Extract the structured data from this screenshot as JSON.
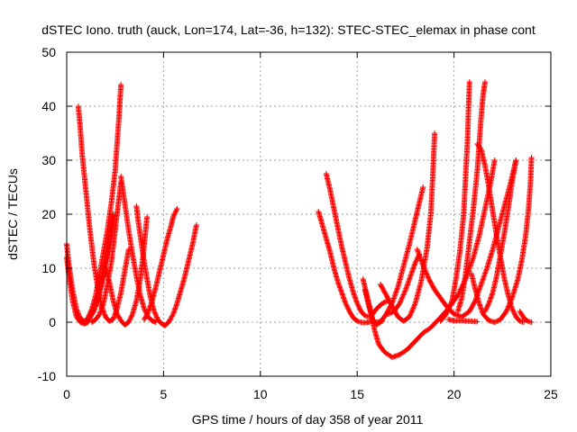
{
  "chart_data": {
    "type": "scatter",
    "title": "dSTEC Iono. truth (auck, Lon=174, Lat=-36, h=132): STEC-STEC_elemax in phase cont",
    "xlabel": "GPS time / hours of day 358 of year 2011",
    "ylabel": "dSTEC  / TECUs",
    "xlim": [
      0,
      25
    ],
    "ylim": [
      -10,
      50
    ],
    "xticks": [
      0,
      5,
      10,
      15,
      20,
      25
    ],
    "yticks": [
      -10,
      0,
      10,
      20,
      30,
      40,
      50
    ],
    "grid": true,
    "marker": "+",
    "color": "#ff0000",
    "series": [
      {
        "points": [
          [
            0.0,
            14.5
          ],
          [
            0.1,
            11
          ],
          [
            0.3,
            6
          ],
          [
            0.5,
            2.5
          ],
          [
            0.7,
            0.7
          ],
          [
            0.9,
            0.2
          ],
          [
            1.1,
            0.5
          ],
          [
            1.4,
            2
          ],
          [
            1.6,
            4
          ],
          [
            1.8,
            7
          ],
          [
            2.0,
            11
          ],
          [
            2.2,
            15
          ],
          [
            2.4,
            20
          ]
        ]
      },
      {
        "points": [
          [
            0.0,
            12
          ],
          [
            0.1,
            9
          ],
          [
            0.3,
            4
          ],
          [
            0.5,
            1
          ],
          [
            0.7,
            0
          ],
          [
            0.9,
            -0.3
          ],
          [
            1.1,
            0
          ],
          [
            1.3,
            1.5
          ],
          [
            1.6,
            4.5
          ],
          [
            1.9,
            9
          ],
          [
            2.1,
            13
          ],
          [
            2.3,
            17
          ],
          [
            2.5,
            20
          ]
        ]
      },
      {
        "points": [
          [
            0.6,
            40
          ],
          [
            0.7,
            36
          ],
          [
            0.8,
            31
          ],
          [
            1.0,
            24
          ],
          [
            1.2,
            17
          ],
          [
            1.4,
            11
          ],
          [
            1.6,
            6.5
          ],
          [
            1.8,
            3
          ],
          [
            2.0,
            1
          ],
          [
            2.2,
            0.2
          ],
          [
            2.4,
            0.5
          ],
          [
            2.6,
            2.5
          ],
          [
            2.8,
            5.5
          ],
          [
            3.0,
            9.5
          ],
          [
            3.2,
            13.5
          ]
        ]
      },
      {
        "points": [
          [
            0.9,
            0
          ],
          [
            1.1,
            0.8
          ],
          [
            1.3,
            2.5
          ],
          [
            1.5,
            5
          ],
          [
            1.7,
            9
          ],
          [
            1.9,
            13
          ],
          [
            2.1,
            17
          ],
          [
            2.3,
            22
          ],
          [
            2.5,
            28
          ],
          [
            2.6,
            33
          ],
          [
            2.7,
            38
          ],
          [
            2.75,
            41
          ],
          [
            2.8,
            44
          ]
        ]
      },
      {
        "points": [
          [
            1.3,
            0
          ],
          [
            1.5,
            0.5
          ],
          [
            1.7,
            1.5
          ],
          [
            1.9,
            3.5
          ],
          [
            2.1,
            7
          ],
          [
            2.3,
            11
          ],
          [
            2.4,
            14
          ],
          [
            2.5,
            17
          ],
          [
            2.6,
            20
          ],
          [
            2.7,
            23
          ],
          [
            2.8,
            26
          ]
        ]
      },
      {
        "points": [
          [
            2.8,
            27
          ],
          [
            3.0,
            22
          ],
          [
            3.2,
            17
          ],
          [
            3.4,
            12.5
          ],
          [
            3.6,
            8.5
          ],
          [
            3.8,
            5
          ],
          [
            4.0,
            2.5
          ],
          [
            4.2,
            1
          ],
          [
            4.4,
            0.3
          ],
          [
            4.6,
            0
          ]
        ]
      },
      {
        "points": [
          [
            2.0,
            10
          ],
          [
            2.2,
            7.5
          ],
          [
            2.4,
            4
          ],
          [
            2.6,
            1.5
          ],
          [
            2.8,
            0.3
          ],
          [
            3.0,
            -0.5
          ],
          [
            3.2,
            0
          ],
          [
            3.4,
            1.5
          ],
          [
            3.6,
            4
          ],
          [
            3.8,
            8
          ],
          [
            3.95,
            12.5
          ],
          [
            4.05,
            16
          ],
          [
            4.15,
            19.5
          ]
        ]
      },
      {
        "points": [
          [
            3.6,
            21.5
          ],
          [
            3.7,
            18.5
          ],
          [
            3.9,
            13.5
          ],
          [
            4.1,
            9
          ],
          [
            4.3,
            5
          ],
          [
            4.5,
            2.2
          ],
          [
            4.7,
            0.5
          ],
          [
            4.9,
            -0.3
          ],
          [
            5.1,
            -0.6
          ],
          [
            5.3,
            0.2
          ],
          [
            5.5,
            1.5
          ],
          [
            5.7,
            3.5
          ],
          [
            5.9,
            6
          ],
          [
            6.1,
            8.5
          ],
          [
            6.3,
            11.5
          ],
          [
            6.5,
            14.5
          ],
          [
            6.7,
            18
          ]
        ]
      },
      {
        "points": [
          [
            4.0,
            0.5
          ],
          [
            4.2,
            1.8
          ],
          [
            4.4,
            3.8
          ],
          [
            4.6,
            6.5
          ],
          [
            4.8,
            9.5
          ],
          [
            5.0,
            12.5
          ],
          [
            5.2,
            15.5
          ],
          [
            5.4,
            18
          ],
          [
            5.5,
            19.5
          ],
          [
            5.7,
            21
          ]
        ]
      },
      {
        "points": [
          [
            13.0,
            20.5
          ],
          [
            13.2,
            18
          ],
          [
            13.4,
            15.5
          ],
          [
            13.6,
            13
          ],
          [
            13.8,
            10
          ],
          [
            14.0,
            7.5
          ],
          [
            14.2,
            5.5
          ],
          [
            14.4,
            3.5
          ],
          [
            14.6,
            2
          ],
          [
            14.8,
            0.8
          ],
          [
            15.0,
            0.2
          ],
          [
            15.2,
            0
          ],
          [
            15.4,
            -0.1
          ],
          [
            15.7,
            0.1
          ],
          [
            16.0,
            0
          ],
          [
            16.3,
            0.2
          ]
        ]
      },
      {
        "points": [
          [
            13.4,
            27.5
          ],
          [
            13.6,
            24.5
          ],
          [
            13.8,
            21
          ],
          [
            14.0,
            17.5
          ],
          [
            14.2,
            14
          ],
          [
            14.4,
            11
          ],
          [
            14.6,
            8
          ],
          [
            14.8,
            5.5
          ],
          [
            15.0,
            3.5
          ],
          [
            15.2,
            2
          ],
          [
            15.4,
            1.2
          ],
          [
            15.6,
            1
          ],
          [
            15.8,
            1.5
          ],
          [
            16.0,
            2.5
          ],
          [
            16.3,
            3.5
          ],
          [
            16.6,
            4
          ]
        ]
      },
      {
        "points": [
          [
            15.3,
            8
          ],
          [
            15.5,
            5
          ],
          [
            15.7,
            2
          ],
          [
            15.9,
            -1.5
          ],
          [
            16.1,
            -4
          ],
          [
            16.4,
            -5.5
          ],
          [
            16.8,
            -6.5
          ],
          [
            17.2,
            -6
          ],
          [
            17.6,
            -5
          ],
          [
            18.0,
            -3.5
          ],
          [
            18.4,
            -2
          ],
          [
            18.8,
            -1
          ],
          [
            19.2,
            0.5
          ],
          [
            19.7,
            2.5
          ],
          [
            20.2,
            5
          ],
          [
            20.6,
            8
          ],
          [
            21.0,
            12
          ],
          [
            21.3,
            16
          ],
          [
            21.6,
            21
          ],
          [
            21.9,
            26
          ],
          [
            22.1,
            30
          ]
        ]
      },
      {
        "points": [
          [
            15.4,
            6
          ],
          [
            15.6,
            3
          ],
          [
            15.8,
            0.5
          ],
          [
            16.0,
            -0.5
          ],
          [
            16.2,
            0
          ],
          [
            16.5,
            1.5
          ],
          [
            16.8,
            3.5
          ],
          [
            17.1,
            6.5
          ],
          [
            17.4,
            10.5
          ],
          [
            17.7,
            14.5
          ],
          [
            18.0,
            19
          ],
          [
            18.2,
            22
          ],
          [
            18.4,
            25
          ]
        ]
      },
      {
        "points": [
          [
            16.2,
            7
          ],
          [
            16.5,
            5
          ],
          [
            16.8,
            3
          ],
          [
            17.1,
            1
          ],
          [
            17.4,
            0.2
          ],
          [
            17.7,
            1
          ],
          [
            18.0,
            3.5
          ],
          [
            18.3,
            7.5
          ],
          [
            18.6,
            13.5
          ],
          [
            18.8,
            20
          ],
          [
            18.9,
            27
          ],
          [
            19.0,
            35
          ]
        ]
      },
      {
        "points": [
          [
            16.6,
            1.5
          ],
          [
            16.9,
            2
          ],
          [
            17.2,
            3.5
          ],
          [
            17.5,
            6
          ],
          [
            17.8,
            9
          ],
          [
            18.0,
            11
          ],
          [
            18.2,
            12.5
          ]
        ]
      },
      {
        "points": [
          [
            18.1,
            13.5
          ],
          [
            18.4,
            10.5
          ],
          [
            18.7,
            8
          ],
          [
            19.0,
            6
          ],
          [
            19.3,
            4.5
          ],
          [
            19.6,
            3
          ],
          [
            20.0,
            1.5
          ],
          [
            20.4,
            1
          ],
          [
            20.8,
            2
          ],
          [
            21.1,
            4
          ],
          [
            21.4,
            7
          ],
          [
            21.7,
            10
          ],
          [
            22.0,
            13.5
          ],
          [
            22.3,
            17.5
          ],
          [
            22.6,
            21.5
          ],
          [
            22.9,
            25.5
          ],
          [
            23.2,
            30
          ]
        ]
      },
      {
        "points": [
          [
            19.3,
            0.2
          ],
          [
            19.6,
            1.5
          ],
          [
            19.9,
            4
          ],
          [
            20.1,
            8
          ],
          [
            20.3,
            13
          ],
          [
            20.5,
            20
          ],
          [
            20.6,
            27
          ],
          [
            20.7,
            34
          ],
          [
            20.75,
            40
          ],
          [
            20.8,
            44.5
          ]
        ]
      },
      {
        "points": [
          [
            20.2,
            2
          ],
          [
            20.4,
            4.5
          ],
          [
            20.6,
            9
          ],
          [
            20.8,
            15
          ],
          [
            21.0,
            21
          ],
          [
            21.2,
            28
          ],
          [
            21.3,
            33
          ],
          [
            21.4,
            38
          ],
          [
            21.5,
            42
          ],
          [
            21.6,
            44.5
          ]
        ]
      },
      {
        "points": [
          [
            21.2,
            33
          ],
          [
            21.4,
            32
          ],
          [
            21.6,
            29
          ],
          [
            21.8,
            25
          ],
          [
            22.0,
            20.5
          ],
          [
            22.2,
            16
          ],
          [
            22.4,
            12
          ],
          [
            22.6,
            8
          ],
          [
            22.8,
            5
          ],
          [
            23.0,
            2.5
          ],
          [
            23.2,
            1
          ],
          [
            23.4,
            0.2
          ],
          [
            23.6,
            0
          ]
        ]
      },
      {
        "points": [
          [
            20.9,
            9
          ],
          [
            21.1,
            6
          ],
          [
            21.3,
            3.5
          ],
          [
            21.5,
            1.5
          ],
          [
            21.8,
            0.3
          ],
          [
            22.1,
            0
          ],
          [
            22.4,
            0.5
          ],
          [
            22.7,
            2
          ],
          [
            23.0,
            4.5
          ],
          [
            23.3,
            8
          ],
          [
            23.5,
            11.5
          ],
          [
            23.7,
            16
          ],
          [
            23.85,
            21
          ],
          [
            23.95,
            26
          ],
          [
            24.0,
            30.5
          ]
        ]
      },
      {
        "points": [
          [
            19.7,
            0.5
          ],
          [
            20.0,
            0.3
          ],
          [
            20.4,
            0.3
          ],
          [
            20.8,
            0.2
          ],
          [
            21.2,
            0.1
          ]
        ]
      },
      {
        "points": [
          [
            23.2,
            30
          ],
          [
            23.0,
            26
          ],
          [
            22.8,
            21
          ],
          [
            22.6,
            16.5
          ],
          [
            22.4,
            12.5
          ],
          [
            22.2,
            8.5
          ],
          [
            22.0,
            5.5
          ],
          [
            21.8,
            3.5
          ],
          [
            21.6,
            2
          ]
        ]
      },
      {
        "points": [
          [
            23.4,
            2
          ],
          [
            23.6,
            0.8
          ],
          [
            23.8,
            0.2
          ],
          [
            24.0,
            0
          ]
        ]
      }
    ]
  }
}
